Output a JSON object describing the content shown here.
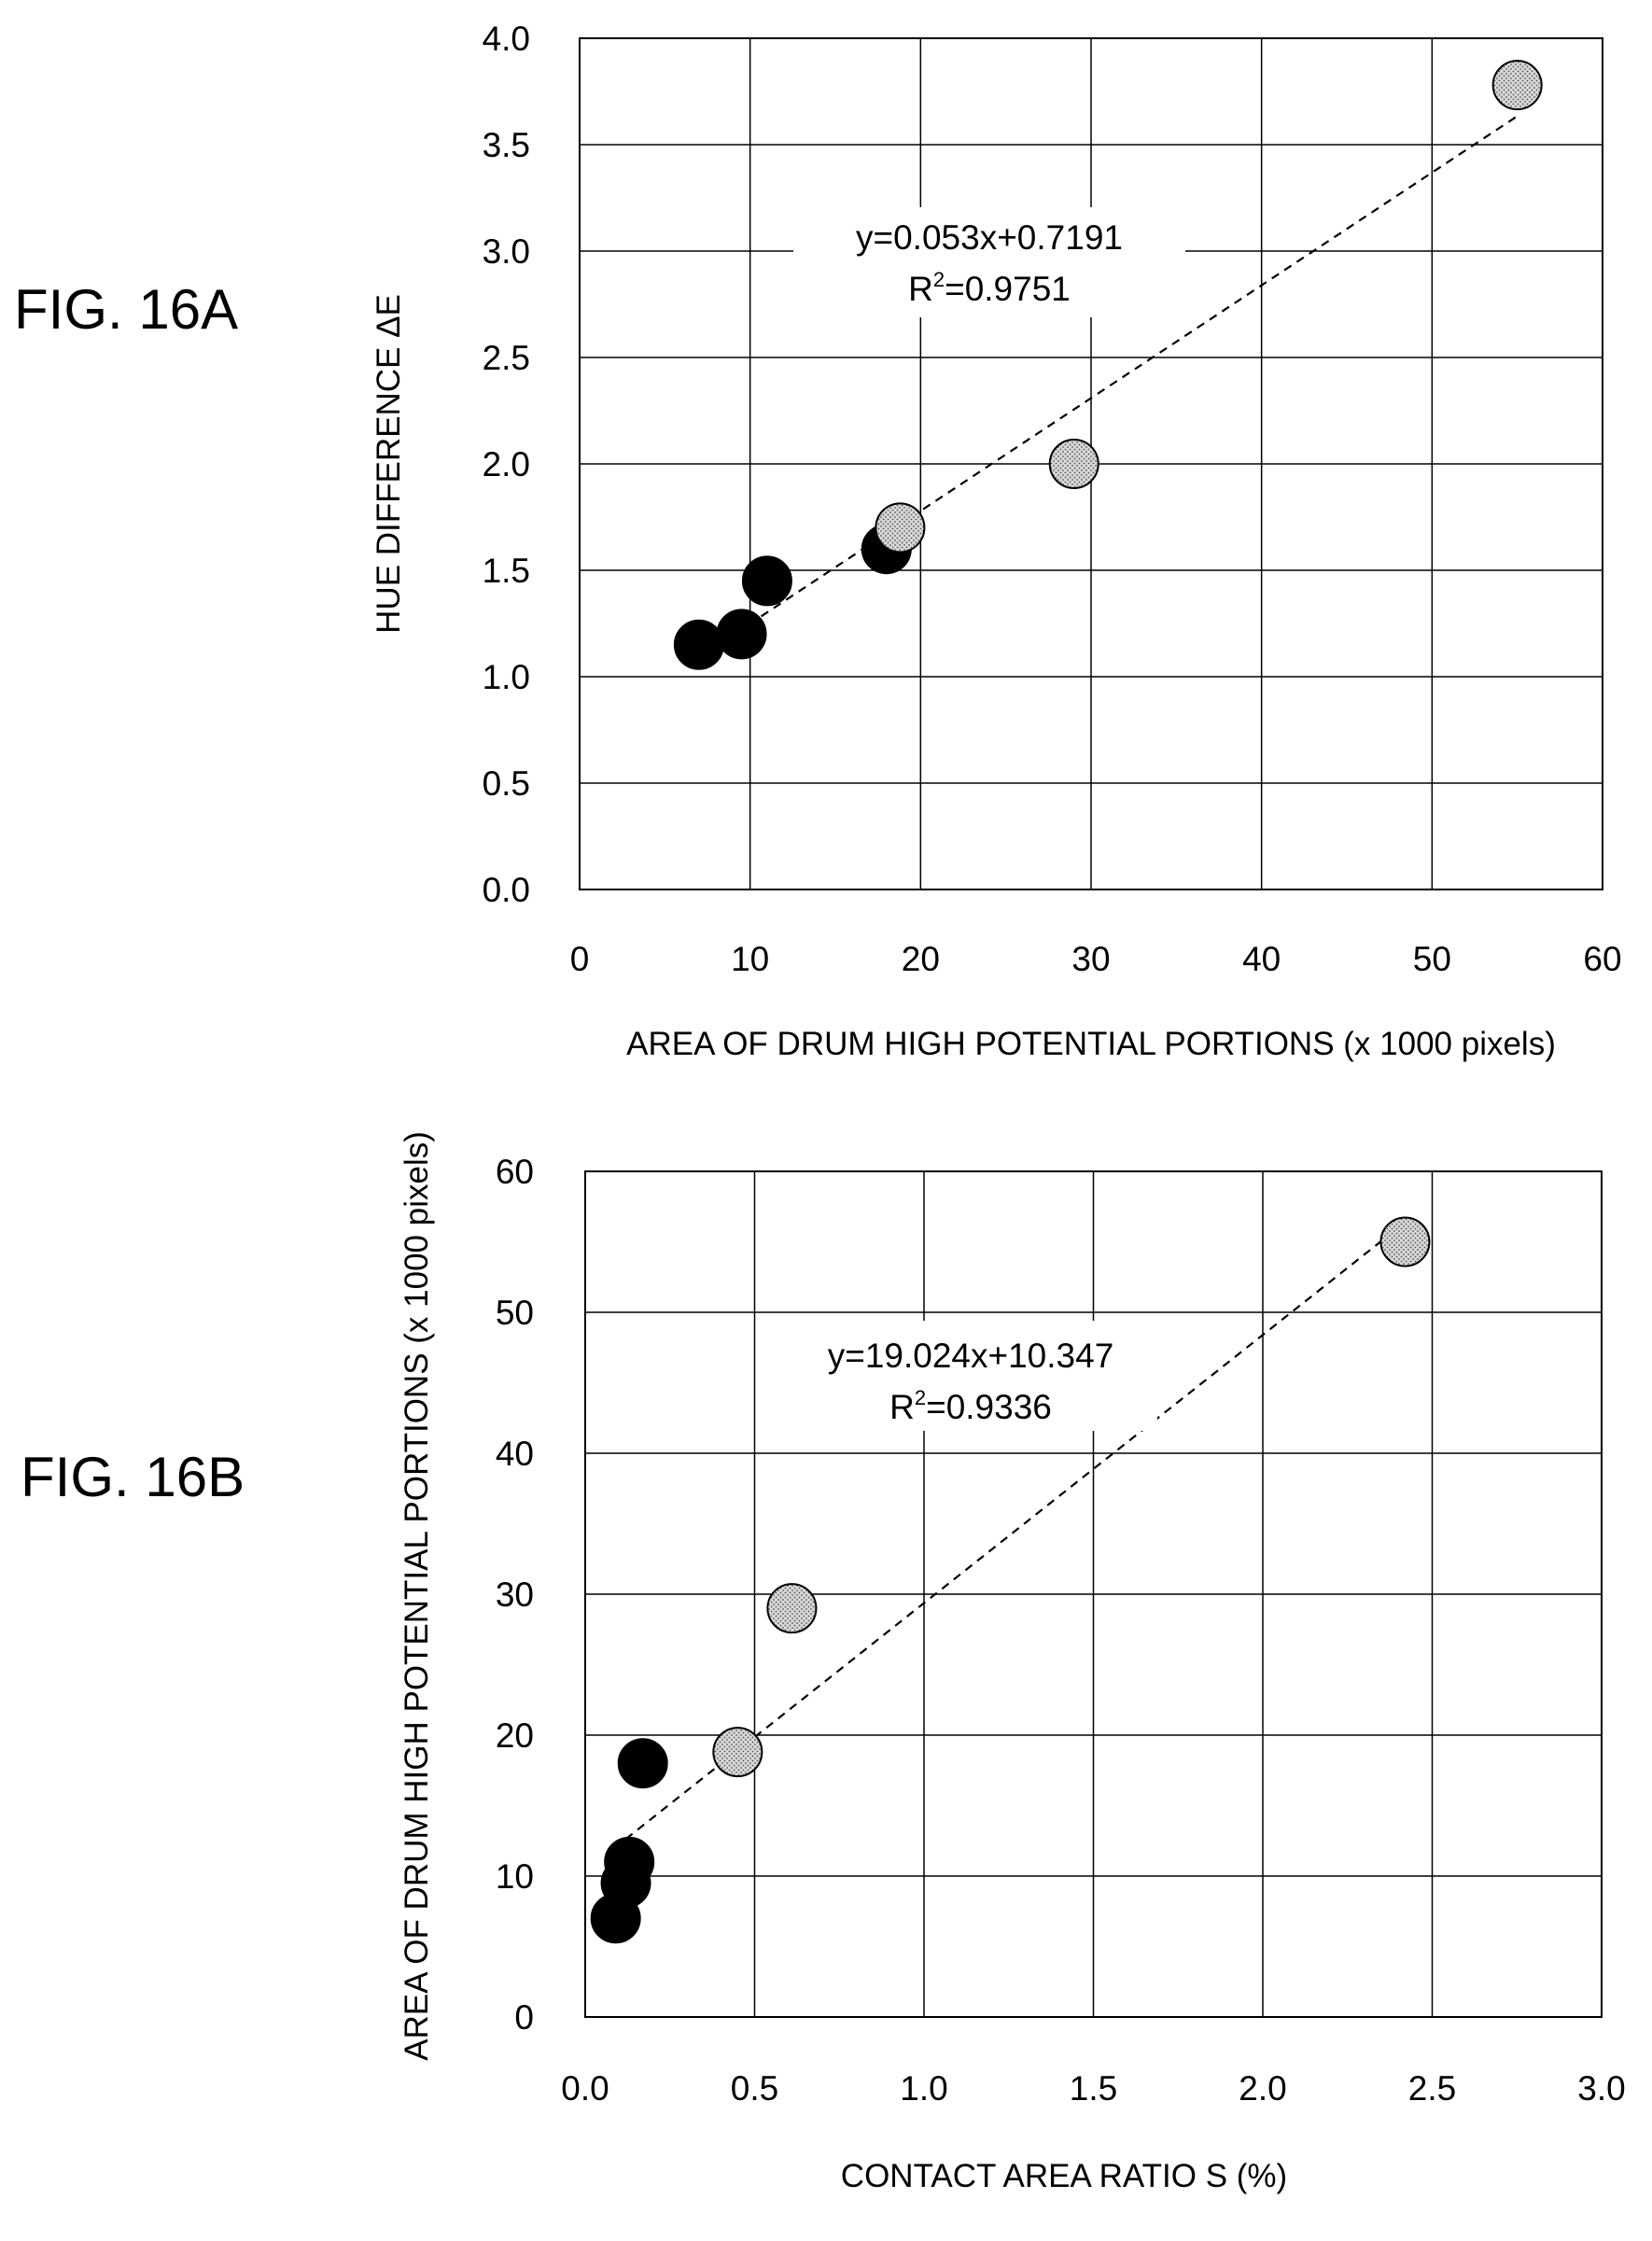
{
  "colors": {
    "filled_point": "#000000",
    "open_point_fill": "#cfcfcf",
    "grid": "#000000"
  },
  "chart_data": [
    {
      "id": "fig16a",
      "type": "scatter",
      "figure_label": "FIG. 16A",
      "title": "",
      "xlabel": "AREA OF DRUM HIGH POTENTIAL PORTIONS (x 1000 pixels)",
      "ylabel": "HUE DIFFERENCE ΔE",
      "xlim": [
        0,
        60
      ],
      "ylim": [
        0,
        4
      ],
      "xticks": [
        0,
        10,
        20,
        30,
        40,
        50,
        60
      ],
      "xtick_labels": [
        "0",
        "10",
        "20",
        "30",
        "40",
        "50",
        "60"
      ],
      "yticks": [
        0,
        0.5,
        1,
        1.5,
        2,
        2.5,
        3,
        3.5,
        4
      ],
      "ytick_labels": [
        "0.0",
        "0.5",
        "1.0",
        "1.5",
        "2.0",
        "2.5",
        "3.0",
        "3.5",
        "4.0"
      ],
      "grid": true,
      "series": [
        {
          "style": "filled",
          "points": [
            [
              7,
              1.15
            ],
            [
              9.5,
              1.2
            ],
            [
              11,
              1.45
            ],
            [
              18,
              1.6
            ]
          ]
        },
        {
          "style": "dotted",
          "points": [
            [
              18.8,
              1.7
            ],
            [
              29,
              2.0
            ],
            [
              55,
              3.78
            ]
          ]
        }
      ],
      "trendline": {
        "slope": 0.053,
        "intercept": 0.7191,
        "x_range": [
          7,
          55
        ]
      },
      "annotation": {
        "equation": "y=0.053x+0.7191",
        "r2_prefix": "R",
        "r2_exp": "2",
        "r2_value": "=0.9751"
      }
    },
    {
      "id": "fig16b",
      "type": "scatter",
      "figure_label": "FIG. 16B",
      "title": "",
      "xlabel": "CONTACT AREA RATIO S (%)",
      "ylabel": "AREA OF DRUM HIGH POTENTIAL PORTIONS (x 1000 pixels)",
      "xlim": [
        0,
        3
      ],
      "ylim": [
        0,
        60
      ],
      "xticks": [
        0,
        0.5,
        1,
        1.5,
        2,
        2.5,
        3
      ],
      "xtick_labels": [
        "0.0",
        "0.5",
        "1.0",
        "1.5",
        "2.0",
        "2.5",
        "3.0"
      ],
      "yticks": [
        0,
        10,
        20,
        30,
        40,
        50,
        60
      ],
      "ytick_labels": [
        "0",
        "10",
        "20",
        "30",
        "40",
        "50",
        "60"
      ],
      "grid": true,
      "series": [
        {
          "style": "filled",
          "points": [
            [
              0.09,
              7
            ],
            [
              0.12,
              9.5
            ],
            [
              0.13,
              11
            ],
            [
              0.17,
              18
            ]
          ]
        },
        {
          "style": "dotted",
          "points": [
            [
              0.45,
              18.8
            ],
            [
              0.61,
              29
            ],
            [
              2.42,
              55
            ]
          ]
        }
      ],
      "trendline": {
        "slope": 19.024,
        "intercept": 10.347,
        "x_range": [
          0.12,
          2.42
        ]
      },
      "annotation": {
        "equation": "y=19.024x+10.347",
        "r2_prefix": "R",
        "r2_exp": "2",
        "r2_value": "=0.9336"
      }
    }
  ]
}
